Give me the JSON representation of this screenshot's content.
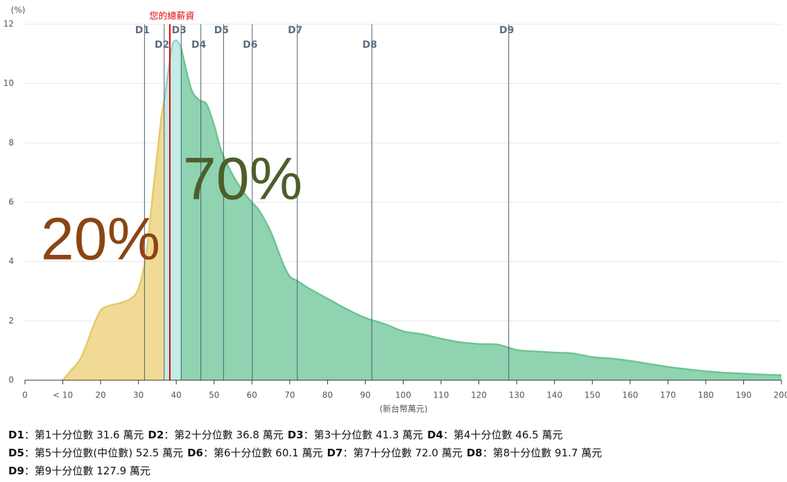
{
  "chart_data": {
    "type": "area",
    "y_label": "(%)",
    "x_label": "(新台幣萬元)",
    "xlim": [
      0,
      200
    ],
    "ylim": [
      0,
      12
    ],
    "xticks": [
      0,
      {
        "value": 10,
        "label": "< 10"
      },
      20,
      30,
      40,
      50,
      60,
      70,
      80,
      90,
      100,
      110,
      120,
      130,
      140,
      150,
      160,
      170,
      180,
      190,
      200
    ],
    "yticks": [
      0,
      2,
      4,
      6,
      8,
      10,
      12
    ],
    "grid": true,
    "series": [
      {
        "color": "#f0da96",
        "line_color": "#e6c86c",
        "x": [
          10,
          12,
          15,
          18,
          20,
          22,
          25,
          28,
          30,
          32,
          34,
          36,
          36.8
        ],
        "values": [
          0,
          0.3,
          0.8,
          1.8,
          2.35,
          2.5,
          2.6,
          2.75,
          3.1,
          4.2,
          6.5,
          8.8,
          9.4
        ]
      },
      {
        "color": "#c2ece6",
        "line_color": "#8fd3c6",
        "x": [
          36.8,
          38,
          39,
          40,
          41,
          41.3
        ],
        "values": [
          9.4,
          10.5,
          11.3,
          11.45,
          11.3,
          11.2
        ]
      },
      {
        "color": "#8fd3b0",
        "line_color": "#6cc492",
        "x": [
          41.3,
          42,
          44,
          46,
          48,
          50,
          52,
          55,
          58,
          60,
          62,
          65,
          68,
          70,
          72,
          75,
          80,
          85,
          90,
          95,
          100,
          105,
          110,
          115,
          120,
          125,
          130,
          135,
          140,
          145,
          150,
          155,
          160,
          165,
          170,
          175,
          180,
          185,
          190,
          195,
          200
        ],
        "values": [
          11.2,
          10.8,
          9.8,
          9.45,
          9.3,
          8.6,
          7.7,
          6.9,
          6.3,
          6.0,
          5.7,
          5.0,
          4.0,
          3.5,
          3.35,
          3.1,
          2.75,
          2.4,
          2.1,
          1.9,
          1.65,
          1.55,
          1.4,
          1.28,
          1.22,
          1.2,
          1.02,
          0.97,
          0.93,
          0.9,
          0.78,
          0.73,
          0.65,
          0.55,
          0.45,
          0.37,
          0.3,
          0.25,
          0.22,
          0.19,
          0.17
        ]
      }
    ],
    "deciles": [
      {
        "label": "D1",
        "value": 31.6,
        "description": "：第1十分位數 31.6 萬元"
      },
      {
        "label": "D2",
        "value": 36.8,
        "description": "：第2十分位數 36.8 萬元"
      },
      {
        "label": "D3",
        "value": 41.3,
        "description": "：第3十分位數 41.3 萬元"
      },
      {
        "label": "D4",
        "value": 46.5,
        "description": "：第4十分位數 46.5 萬元"
      },
      {
        "label": "D5",
        "value": 52.5,
        "description": "：第5十分位數(中位數) 52.5 萬元"
      },
      {
        "label": "D6",
        "value": 60.1,
        "description": "：第6十分位數 60.1 萬元"
      },
      {
        "label": "D7",
        "value": 72.0,
        "description": "：第7十分位數 72.0 萬元"
      },
      {
        "label": "D8",
        "value": 91.7,
        "description": "：第8十分位數 91.7 萬元"
      },
      {
        "label": "D9",
        "value": 127.9,
        "description": "：第9十分位數 127.9 萬元"
      }
    ],
    "marker": {
      "label": "您的總薪資",
      "value": 38.3,
      "color": "#e00000"
    },
    "annotations": [
      {
        "text": "20%",
        "color": "#8b4513"
      },
      {
        "text": "70%",
        "color": "#4d5e2a"
      }
    ]
  }
}
